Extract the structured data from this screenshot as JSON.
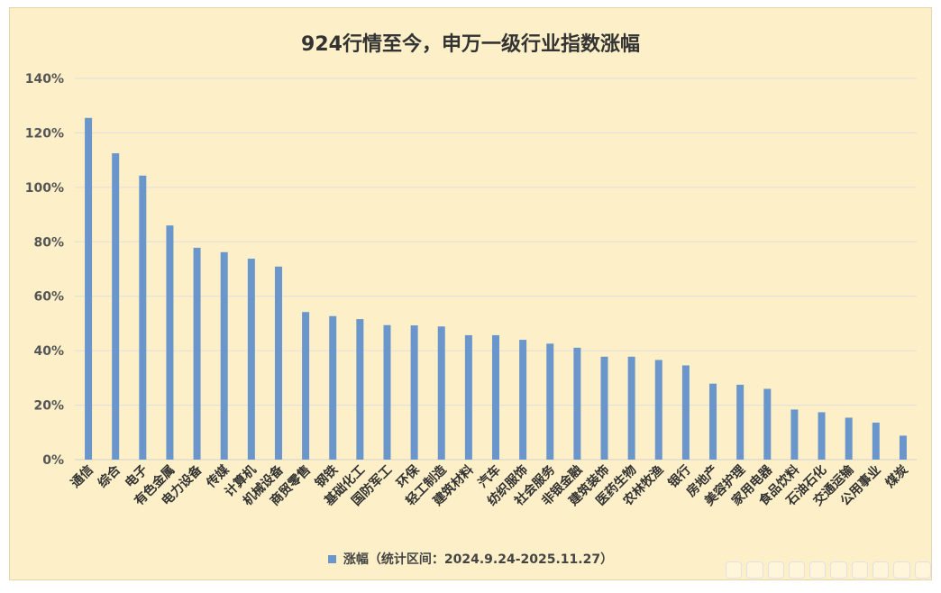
{
  "chart_data": {
    "type": "bar",
    "title": "924行情至今，申万一级行业指数涨幅",
    "series": [
      {
        "name": "涨幅（统计区间：2024.9.24-2025.11.27）",
        "color": "#6a96cc",
        "values": [
          125.5,
          112.5,
          104.3,
          86.0,
          77.8,
          76.2,
          73.8,
          70.9,
          54.2,
          52.7,
          51.6,
          49.4,
          49.3,
          48.9,
          45.7,
          45.7,
          44.0,
          42.6,
          41.1,
          37.8,
          37.8,
          36.6,
          34.6,
          27.9,
          27.5,
          26.0,
          18.4,
          17.4,
          15.4,
          13.6,
          8.8
        ]
      }
    ],
    "categories": [
      "通信",
      "综合",
      "电子",
      "有色金属",
      "电力设备",
      "传媒",
      "计算机",
      "机械设备",
      "商贸零售",
      "钢铁",
      "基础化工",
      "国防军工",
      "环保",
      "轻工制造",
      "建筑材料",
      "汽车",
      "纺织服饰",
      "社会服务",
      "非银金融",
      "建筑装饰",
      "医药生物",
      "农林牧渔",
      "银行",
      "房地产",
      "美容护理",
      "家用电器",
      "食品饮料",
      "石油石化",
      "交通运输",
      "公用事业",
      "煤炭"
    ],
    "y_ticks": [
      "0%",
      "20%",
      "40%",
      "60%",
      "80%",
      "100%",
      "120%",
      "140%"
    ],
    "ylim": [
      0,
      140
    ],
    "y_unit": "%",
    "grid": true,
    "legend_position": "bottom"
  }
}
